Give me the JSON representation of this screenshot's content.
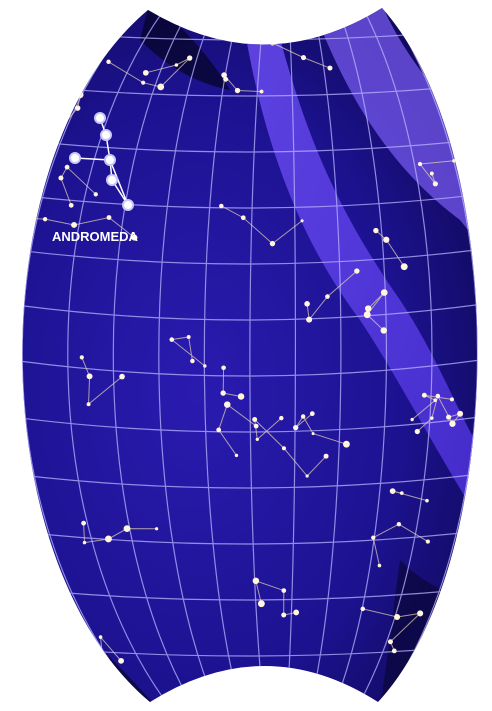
{
  "label": "ANDROMEDA"
}
